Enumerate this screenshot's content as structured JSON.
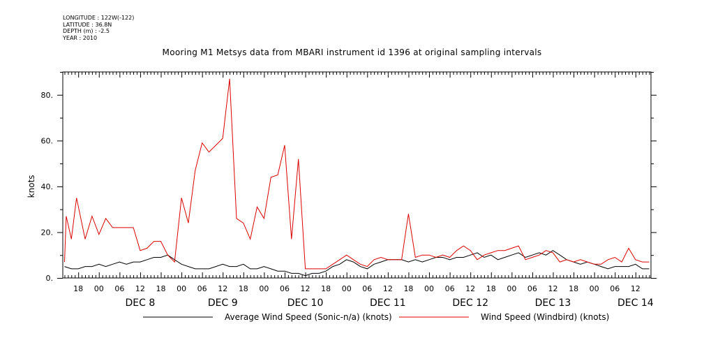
{
  "header": {
    "longitude": "LONGITUDE : 122W(-122)",
    "latitude": "LATITUDE : 36.8N",
    "depth": "DEPTH (m) : -2.5",
    "year": "YEAR : 2010"
  },
  "chart_data": {
    "type": "line",
    "title": "Mooring M1 Metsys data from MBARI instrument id 1396 at original sampling intervals",
    "ylabel": "knots",
    "xlabel": "",
    "ylim": [
      0,
      90
    ],
    "yticks": [
      0,
      20,
      40,
      60,
      80
    ],
    "ytick_labels": [
      "0.",
      "20.",
      "40.",
      "60.",
      "80."
    ],
    "x_unit": "hours since DEC 8 00:00",
    "xlim": [
      -10.5,
      160.5
    ],
    "hour_ticks": [
      0,
      6,
      12,
      18
    ],
    "days": [
      "DEC 8",
      "DEC 9",
      "DEC 10",
      "DEC 11",
      "DEC 12",
      "DEC 13",
      "DEC 14"
    ],
    "grid": false,
    "legend": "bottom",
    "series": [
      {
        "name": "Average Wind Speed (Sonic-n/a) (knots)",
        "color": "#000000",
        "x": [
          -10,
          -8,
          -6,
          -4,
          -2,
          0,
          2,
          4,
          6,
          8,
          10,
          12,
          14,
          16,
          18,
          20,
          22,
          24,
          26,
          28,
          30,
          32,
          34,
          36,
          38,
          40,
          42,
          44,
          46,
          48,
          50,
          52,
          54,
          56,
          58,
          60,
          62,
          64,
          66,
          68,
          70,
          72,
          74,
          76,
          78,
          80,
          82,
          84,
          86,
          88,
          90,
          92,
          94,
          96,
          98,
          100,
          102,
          104,
          106,
          108,
          110,
          112,
          114,
          116,
          118,
          120,
          122,
          124,
          126,
          128,
          130,
          132,
          134,
          136,
          138,
          140,
          142,
          144,
          146,
          148,
          150,
          152,
          154,
          156,
          158,
          160
        ],
        "y": [
          5,
          4,
          4,
          5,
          5,
          6,
          5,
          6,
          7,
          6,
          7,
          7,
          8,
          9,
          9,
          10,
          8,
          6,
          5,
          4,
          4,
          4,
          5,
          6,
          5,
          5,
          6,
          4,
          4,
          5,
          4,
          3,
          3,
          2,
          2,
          1,
          2,
          2,
          3,
          5,
          6,
          8,
          7,
          5,
          4,
          6,
          7,
          8,
          8,
          8,
          7,
          8,
          7,
          8,
          9,
          9,
          8,
          9,
          9,
          10,
          11,
          9,
          10,
          8,
          9,
          10,
          11,
          9,
          10,
          11,
          10,
          12,
          10,
          8,
          7,
          6,
          7,
          6,
          5,
          4,
          5,
          5,
          5,
          6,
          4,
          4
        ]
      },
      {
        "name": "Wind Speed (Windbird) (knots)",
        "color": "#dd0000",
        "x": [
          -10,
          -9.5,
          -8,
          -6.5,
          -4,
          -2,
          0,
          2,
          4,
          6,
          8,
          10,
          12,
          14,
          16,
          18,
          20,
          22,
          24,
          26,
          28,
          30,
          32,
          34,
          36,
          38,
          40,
          42,
          44,
          46,
          48,
          50,
          52,
          54,
          56,
          58,
          60,
          62,
          64,
          66,
          68,
          70,
          72,
          74,
          76,
          78,
          80,
          82,
          84,
          86,
          88,
          90,
          92,
          94,
          96,
          98,
          100,
          102,
          104,
          106,
          108,
          110,
          112,
          114,
          116,
          118,
          120,
          122,
          124,
          126,
          128,
          130,
          132,
          134,
          136,
          138,
          140,
          142,
          144,
          146,
          148,
          150,
          152,
          154,
          156,
          158,
          160
        ],
        "y": [
          7,
          27,
          17,
          35,
          17,
          27,
          19,
          26,
          22,
          22,
          22,
          22,
          12,
          13,
          16,
          16,
          10,
          7,
          35,
          24,
          47,
          59,
          55,
          58,
          61,
          87,
          26,
          24,
          17,
          31,
          26,
          44,
          45,
          58,
          17,
          52,
          4,
          4,
          4,
          4,
          6,
          8,
          10,
          8,
          6,
          5,
          8,
          9,
          8,
          8,
          8,
          28,
          9,
          10,
          10,
          9,
          10,
          9,
          12,
          14,
          12,
          8,
          10,
          11,
          12,
          12,
          13,
          14,
          8,
          9,
          10,
          12,
          11,
          7,
          8,
          7,
          8,
          7,
          6,
          6,
          8,
          9,
          7,
          13,
          8,
          7,
          7
        ]
      }
    ]
  }
}
